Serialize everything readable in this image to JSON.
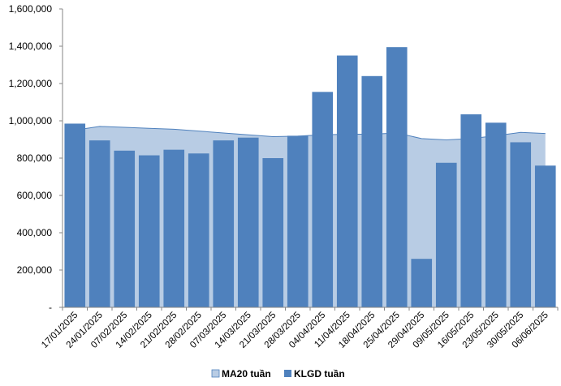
{
  "chart_data": {
    "type": "bar",
    "categories": [
      "17/01/2025",
      "24/01/2025",
      "07/02/2025",
      "14/02/2025",
      "21/02/2025",
      "28/02/2025",
      "07/03/2025",
      "14/03/2025",
      "21/03/2025",
      "28/03/2025",
      "04/04/2025",
      "11/04/2025",
      "18/04/2025",
      "25/04/2025",
      "29/04/2025",
      "09/05/2025",
      "16/05/2025",
      "23/05/2025",
      "30/05/2025",
      "06/06/2025"
    ],
    "series": [
      {
        "name": "MA20 tuần",
        "kind": "area",
        "color": "#b8cce4",
        "line_color": "#4f81bd",
        "values": [
          950000,
          970000,
          965000,
          960000,
          955000,
          945000,
          935000,
          925000,
          915000,
          918000,
          925000,
          928000,
          928000,
          935000,
          905000,
          898000,
          905000,
          920000,
          938000,
          932000
        ]
      },
      {
        "name": "KLGD tuần",
        "kind": "bar",
        "color": "#4f81bd",
        "values": [
          985000,
          895000,
          840000,
          815000,
          845000,
          825000,
          895000,
          910000,
          800000,
          920000,
          1155000,
          1350000,
          1240000,
          1395000,
          260000,
          775000,
          1035000,
          990000,
          885000,
          760000
        ]
      }
    ],
    "ylim": [
      0,
      1600000
    ],
    "y_ticks": [
      {
        "value": 0,
        "label": "-"
      },
      {
        "value": 200000,
        "label": "200,000"
      },
      {
        "value": 400000,
        "label": "400,000"
      },
      {
        "value": 600000,
        "label": "600,000"
      },
      {
        "value": 800000,
        "label": "800,000"
      },
      {
        "value": 1000000,
        "label": "1,000,000"
      },
      {
        "value": 1200000,
        "label": "1,200,000"
      },
      {
        "value": 1400000,
        "label": "1,400,000"
      },
      {
        "value": 1600000,
        "label": "1,600,000"
      }
    ],
    "grid": false,
    "legend_position": "bottom",
    "title": "",
    "xlabel": "",
    "ylabel": ""
  }
}
